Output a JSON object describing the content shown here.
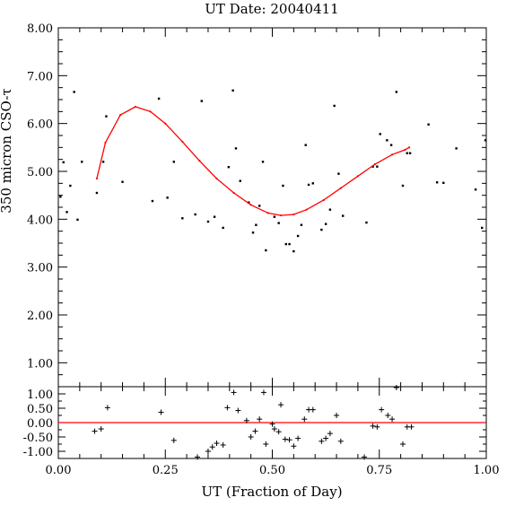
{
  "chart_data": [
    {
      "type": "scatter",
      "panel": "main",
      "title": "UT Date: 20040411",
      "xlabel": "",
      "ylabel": "350 micron CSO-τ",
      "xlim": [
        0.0,
        1.0
      ],
      "ylim": [
        0.5,
        8.0
      ],
      "yticks": [
        "1.00",
        "2.00",
        "3.00",
        "4.00",
        "5.00",
        "6.00",
        "7.00",
        "8.00"
      ],
      "grid": false,
      "series": [
        {
          "kind": "points",
          "color": "#000000",
          "points": [
            [
              0.005,
              4.47
            ],
            [
              0.012,
              5.19
            ],
            [
              0.02,
              4.15
            ],
            [
              0.028,
              4.7
            ],
            [
              0.037,
              6.66
            ],
            [
              0.045,
              3.99
            ],
            [
              0.055,
              5.2
            ],
            [
              0.09,
              4.55
            ],
            [
              0.105,
              5.2
            ],
            [
              0.112,
              6.15
            ],
            [
              0.15,
              4.78
            ],
            [
              0.22,
              4.38
            ],
            [
              0.235,
              6.52
            ],
            [
              0.255,
              4.45
            ],
            [
              0.27,
              5.2
            ],
            [
              0.29,
              4.02
            ],
            [
              0.32,
              4.1
            ],
            [
              0.335,
              6.47
            ],
            [
              0.35,
              3.95
            ],
            [
              0.365,
              4.05
            ],
            [
              0.385,
              3.82
            ],
            [
              0.398,
              5.09
            ],
            [
              0.408,
              6.69
            ],
            [
              0.415,
              5.48
            ],
            [
              0.425,
              4.8
            ],
            [
              0.445,
              4.35
            ],
            [
              0.455,
              3.72
            ],
            [
              0.462,
              3.88
            ],
            [
              0.47,
              4.28
            ],
            [
              0.478,
              5.2
            ],
            [
              0.485,
              3.35
            ],
            [
              0.505,
              4.05
            ],
            [
              0.515,
              3.92
            ],
            [
              0.525,
              4.7
            ],
            [
              0.532,
              3.48
            ],
            [
              0.54,
              3.48
            ],
            [
              0.55,
              3.33
            ],
            [
              0.56,
              3.65
            ],
            [
              0.568,
              3.88
            ],
            [
              0.578,
              5.55
            ],
            [
              0.585,
              4.72
            ],
            [
              0.595,
              4.75
            ],
            [
              0.615,
              3.78
            ],
            [
              0.625,
              3.9
            ],
            [
              0.635,
              4.2
            ],
            [
              0.645,
              6.37
            ],
            [
              0.655,
              4.95
            ],
            [
              0.665,
              4.07
            ],
            [
              0.72,
              3.93
            ],
            [
              0.735,
              5.1
            ],
            [
              0.745,
              5.1
            ],
            [
              0.752,
              5.78
            ],
            [
              0.768,
              5.65
            ],
            [
              0.778,
              5.55
            ],
            [
              0.79,
              6.66
            ],
            [
              0.805,
              4.7
            ],
            [
              0.815,
              5.38
            ],
            [
              0.822,
              5.38
            ],
            [
              0.865,
              5.98
            ],
            [
              0.885,
              4.77
            ],
            [
              0.9,
              4.76
            ],
            [
              0.93,
              5.48
            ],
            [
              0.975,
              4.62
            ],
            [
              0.99,
              3.82
            ],
            [
              0.998,
              5.65
            ]
          ]
        },
        {
          "kind": "fit-line",
          "color": "#ff0000",
          "points": [
            [
              0.09,
              4.85
            ],
            [
              0.11,
              5.6
            ],
            [
              0.145,
              6.18
            ],
            [
              0.18,
              6.35
            ],
            [
              0.215,
              6.25
            ],
            [
              0.25,
              6.0
            ],
            [
              0.29,
              5.62
            ],
            [
              0.33,
              5.22
            ],
            [
              0.37,
              4.85
            ],
            [
              0.41,
              4.55
            ],
            [
              0.45,
              4.3
            ],
            [
              0.49,
              4.13
            ],
            [
              0.52,
              4.08
            ],
            [
              0.55,
              4.1
            ],
            [
              0.58,
              4.2
            ],
            [
              0.62,
              4.4
            ],
            [
              0.66,
              4.65
            ],
            [
              0.7,
              4.9
            ],
            [
              0.74,
              5.15
            ],
            [
              0.78,
              5.35
            ],
            [
              0.81,
              5.45
            ],
            [
              0.82,
              5.5
            ]
          ]
        }
      ]
    },
    {
      "type": "scatter",
      "panel": "residuals",
      "xlabel": "UT (Fraction of Day)",
      "ylabel": "",
      "xlim": [
        0.0,
        1.0
      ],
      "ylim": [
        -1.25,
        1.25
      ],
      "xticks": [
        "0.00",
        "0.25",
        "0.50",
        "0.75",
        "1.00"
      ],
      "yticks": [
        "-1.00",
        "-0.50",
        "0.00",
        "0.50",
        "1.00"
      ],
      "grid": false,
      "series": [
        {
          "kind": "plus",
          "color": "#000000",
          "points": [
            [
              0.085,
              -0.3
            ],
            [
              0.1,
              -0.22
            ],
            [
              0.115,
              0.52
            ],
            [
              0.24,
              0.36
            ],
            [
              0.27,
              -0.62
            ],
            [
              0.325,
              -1.2
            ],
            [
              0.35,
              -1.0
            ],
            [
              0.36,
              -0.85
            ],
            [
              0.37,
              -0.72
            ],
            [
              0.385,
              -0.78
            ],
            [
              0.395,
              0.52
            ],
            [
              0.41,
              1.05
            ],
            [
              0.42,
              0.42
            ],
            [
              0.44,
              0.07
            ],
            [
              0.45,
              -0.5
            ],
            [
              0.46,
              -0.3
            ],
            [
              0.47,
              0.12
            ],
            [
              0.48,
              1.05
            ],
            [
              0.485,
              -0.75
            ],
            [
              0.5,
              -0.05
            ],
            [
              0.505,
              -0.22
            ],
            [
              0.515,
              -0.32
            ],
            [
              0.52,
              0.62
            ],
            [
              0.53,
              -0.58
            ],
            [
              0.54,
              -0.6
            ],
            [
              0.55,
              -0.82
            ],
            [
              0.56,
              -0.55
            ],
            [
              0.575,
              0.12
            ],
            [
              0.585,
              0.45
            ],
            [
              0.595,
              0.45
            ],
            [
              0.615,
              -0.65
            ],
            [
              0.625,
              -0.55
            ],
            [
              0.635,
              -0.38
            ],
            [
              0.65,
              0.25
            ],
            [
              0.66,
              -0.65
            ],
            [
              0.715,
              -1.2
            ],
            [
              0.735,
              -0.12
            ],
            [
              0.745,
              -0.15
            ],
            [
              0.755,
              0.45
            ],
            [
              0.77,
              0.25
            ],
            [
              0.78,
              0.12
            ],
            [
              0.79,
              1.22
            ],
            [
              0.805,
              -0.75
            ],
            [
              0.815,
              -0.15
            ],
            [
              0.825,
              -0.15
            ]
          ]
        },
        {
          "kind": "zero-line",
          "color": "#ff0000",
          "points": [
            [
              0.0,
              0.0
            ],
            [
              1.0,
              0.0
            ]
          ]
        }
      ]
    }
  ]
}
